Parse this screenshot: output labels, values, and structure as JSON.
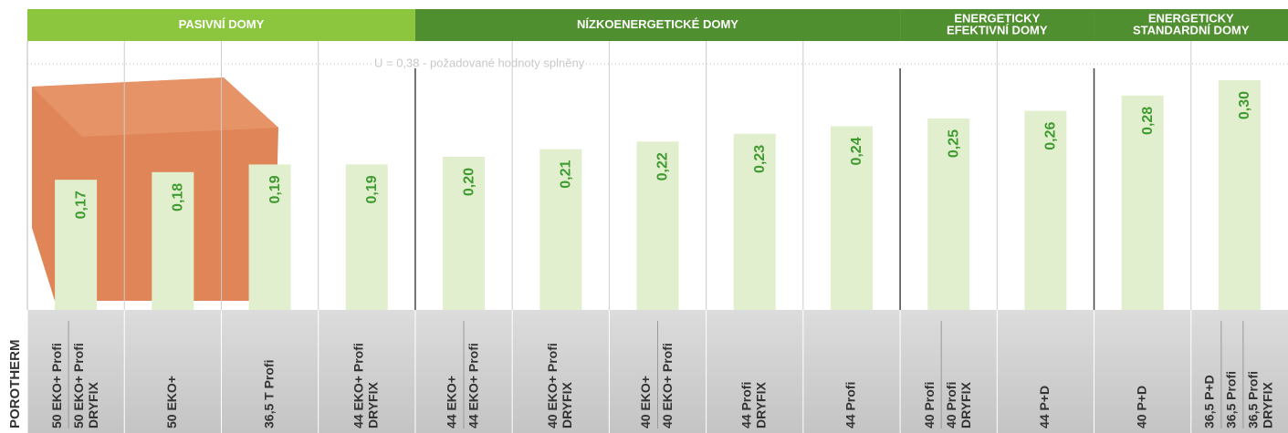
{
  "chart_data": {
    "type": "bar",
    "side_label": "POROTHERM",
    "annotation": "U = 0,38 - požadované hodnoty splněny",
    "ylim": [
      0,
      0.3
    ],
    "bar_color": "#e2efcf",
    "value_color": "#3f9b2f",
    "groups": [
      {
        "name": [
          "PASIVNÍ DOMY"
        ],
        "color": "#8cc63f",
        "categories": [
          [
            [
              "50 EKO+ Profi"
            ],
            [
              "50 EKO+ Profi",
              "DRYFIX"
            ]
          ],
          [
            [
              "50 EKO+"
            ]
          ],
          [
            [
              "36,5 T Profi"
            ]
          ],
          [
            [
              "44 EKO+ Profi",
              "DRYFIX"
            ]
          ]
        ],
        "values": [
          0.17,
          0.18,
          0.19,
          0.19
        ],
        "value_labels": [
          "0,17",
          "0,18",
          "0,19",
          "0,19"
        ]
      },
      {
        "name": [
          "NÍZKOENERGETICKÉ DOMY"
        ],
        "color": "#4f8f2f",
        "categories": [
          [
            [
              "44 EKO+"
            ],
            [
              "44 EKO+ Profi"
            ]
          ],
          [
            [
              "40 EKO+ Profi",
              "DRYFIX"
            ]
          ],
          [
            [
              "40 EKO+"
            ],
            [
              "40 EKO+ Profi"
            ]
          ],
          [
            [
              "44 Profi",
              "DRYFIX"
            ]
          ],
          [
            [
              "44 Profi"
            ]
          ]
        ],
        "values": [
          0.2,
          0.21,
          0.22,
          0.23,
          0.24
        ],
        "value_labels": [
          "0,20",
          "0,21",
          "0,22",
          "0,23",
          "0,24"
        ]
      },
      {
        "name": [
          "ENERGETICKY",
          "EFEKTIVNÍ DOMY"
        ],
        "color": "#4f8f2f",
        "categories": [
          [
            [
              "40 Profi"
            ],
            [
              "40 Profi",
              "DRYFIX"
            ]
          ],
          [
            [
              "44 P+D"
            ]
          ]
        ],
        "values": [
          0.25,
          0.26
        ],
        "value_labels": [
          "0,25",
          "0,26"
        ]
      },
      {
        "name": [
          "ENERGETICKY",
          "STANDARDNÍ DOMY"
        ],
        "color": "#4f8f2f",
        "categories": [
          [
            [
              "40 P+D"
            ]
          ],
          [
            [
              "36,5 P+D"
            ],
            [
              "36,5 Profi"
            ],
            [
              "36,5 Profi",
              "DRYFIX"
            ]
          ]
        ],
        "values": [
          0.28,
          0.3
        ],
        "value_labels": [
          "0,28",
          "0,30"
        ]
      }
    ]
  }
}
